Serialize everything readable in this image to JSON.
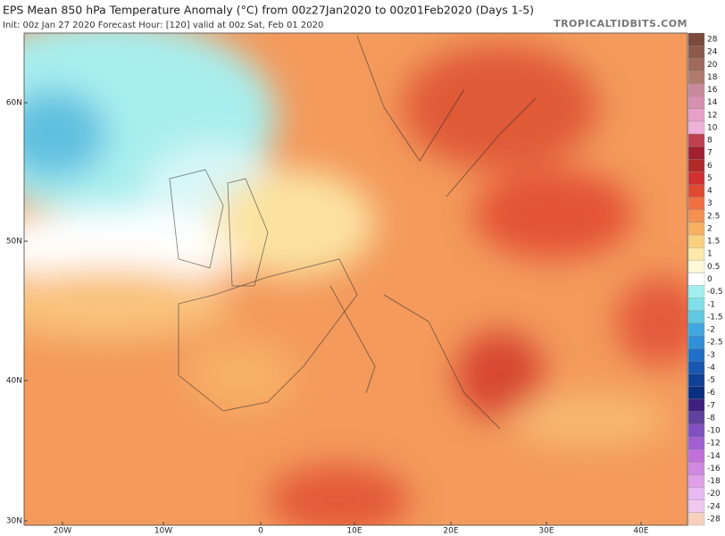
{
  "header": {
    "title": "EPS Mean 850 hPa Temperature Anomaly (°C) from 00z27Jan2020 to 00z01Feb2020 (Days 1-5)",
    "subtitle": "Init: 00z Jan 27 2020   Forecast Hour: [120]   valid at 00z Sat, Feb 01 2020",
    "credit": "TROPICALTIDBITS.COM"
  },
  "map": {
    "lat_labels": [
      "60N",
      "50N",
      "40N",
      "30N"
    ],
    "lon_labels": [
      "20W",
      "10W",
      "0",
      "10E",
      "20E",
      "30E",
      "40E"
    ]
  },
  "colorbar": {
    "labels": [
      "28",
      "24",
      "20",
      "18",
      "16",
      "14",
      "12",
      "10",
      "8",
      "7",
      "6",
      "5",
      "4",
      "3",
      "2.5",
      "2",
      "1.5",
      "1",
      "0.5",
      "0",
      "-0.5",
      "-1",
      "-1.5",
      "-2",
      "-2.5",
      "-3",
      "-4",
      "-5",
      "-6",
      "-7",
      "-8",
      "-10",
      "-12",
      "-14",
      "-16",
      "-18",
      "-20",
      "-24",
      "-28"
    ],
    "colors": [
      "#7a4a3c",
      "#8c5a4c",
      "#9e6a5c",
      "#b07a6c",
      "#c88a9a",
      "#d890b0",
      "#e8a0c8",
      "#f0b0d8",
      "#c04050",
      "#a02030",
      "#b02a2a",
      "#d03030",
      "#e04a30",
      "#f07040",
      "#f59050",
      "#f8b060",
      "#fad080",
      "#fce8a8",
      "#fff8d8",
      "#ffffff",
      "#a0f0f0",
      "#80e0e8",
      "#60c8e0",
      "#40a8e0",
      "#3090d8",
      "#2070c8",
      "#1858b0",
      "#104098",
      "#0a2e80",
      "#402080",
      "#6040a0",
      "#8050c0",
      "#a060d0",
      "#c070d8",
      "#d088e0",
      "#e0a0e8",
      "#e8b8f0",
      "#f0c8f0",
      "#f8d0c0"
    ]
  }
}
